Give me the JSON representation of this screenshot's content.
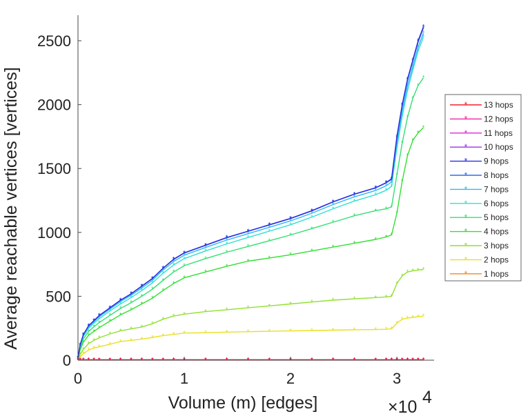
{
  "chart_data": {
    "type": "line",
    "title": "",
    "xlabel": "Volume (m) [edges]",
    "ylabel": "Average reachable vertices [vertices]",
    "x_multiplier": "×10",
    "x_multiplier_exp": "4",
    "xlim": [
      0,
      3.35
    ],
    "ylim": [
      0,
      2700
    ],
    "x_ticks": [
      0,
      1,
      2,
      3
    ],
    "x_tick_labels": [
      "0",
      "1",
      "2",
      "3"
    ],
    "y_ticks": [
      0,
      500,
      1000,
      1500,
      2000,
      2500
    ],
    "y_tick_labels": [
      "0",
      "500",
      "1000",
      "1500",
      "2000",
      "2500"
    ],
    "grid": false,
    "legend_position": "right",
    "marker": "*",
    "x": [
      0,
      0.02,
      0.05,
      0.1,
      0.15,
      0.2,
      0.3,
      0.4,
      0.5,
      0.6,
      0.7,
      0.8,
      0.9,
      1.0,
      1.2,
      1.4,
      1.6,
      1.8,
      2.0,
      2.2,
      2.4,
      2.6,
      2.8,
      2.9,
      2.95,
      3.0,
      3.05,
      3.1,
      3.15,
      3.2,
      3.25
    ],
    "series": [
      {
        "name": "13 hops",
        "color": "#f0202c",
        "values": [
          2,
          2,
          2,
          2,
          2,
          2,
          2,
          2,
          2,
          2,
          2,
          2,
          2,
          2,
          2,
          2,
          2,
          2,
          2,
          2,
          2,
          2,
          2,
          2,
          2,
          2,
          2,
          2,
          2,
          2,
          2
        ]
      },
      {
        "name": "12 hops",
        "color": "#f0209a",
        "values": [
          2,
          2,
          2,
          2,
          2,
          2,
          2,
          2,
          2,
          2,
          2,
          2,
          2,
          2,
          2,
          2,
          2,
          2,
          2,
          2,
          2,
          2,
          2,
          2,
          2,
          2,
          2,
          2,
          2,
          2,
          2
        ]
      },
      {
        "name": "11 hops",
        "color": "#e020e0",
        "values": [
          2,
          2,
          2,
          2,
          2,
          2,
          2,
          2,
          2,
          2,
          2,
          2,
          2,
          2,
          2,
          2,
          2,
          2,
          2,
          2,
          2,
          2,
          2,
          2,
          2,
          2,
          2,
          2,
          2,
          2,
          2
        ]
      },
      {
        "name": "10 hops",
        "color": "#9a30e8",
        "values": [
          2,
          2,
          2,
          2,
          2,
          2,
          2,
          2,
          2,
          2,
          2,
          2,
          2,
          2,
          2,
          2,
          2,
          2,
          2,
          2,
          2,
          2,
          2,
          2,
          2,
          2,
          2,
          2,
          2,
          2,
          2
        ]
      },
      {
        "name": "9 hops",
        "color": "#2c2ce0",
        "values": [
          20,
          120,
          200,
          270,
          310,
          350,
          410,
          470,
          520,
          580,
          640,
          720,
          790,
          840,
          900,
          960,
          1010,
          1060,
          1110,
          1170,
          1240,
          1300,
          1350,
          1390,
          1420,
          1750,
          2000,
          2200,
          2350,
          2500,
          2610
        ]
      },
      {
        "name": "8 hops",
        "color": "#2f6af0",
        "values": [
          20,
          118,
          198,
          268,
          308,
          348,
          408,
          468,
          518,
          578,
          638,
          718,
          788,
          838,
          898,
          958,
          1008,
          1058,
          1108,
          1168,
          1238,
          1298,
          1348,
          1388,
          1415,
          1740,
          1990,
          2190,
          2340,
          2490,
          2600
        ]
      },
      {
        "name": "7 hops",
        "color": "#30b8f0",
        "values": [
          20,
          115,
          195,
          262,
          302,
          340,
          400,
          458,
          508,
          565,
          625,
          705,
          772,
          822,
          882,
          940,
          990,
          1040,
          1090,
          1150,
          1218,
          1278,
          1328,
          1365,
          1395,
          1700,
          1950,
          2150,
          2300,
          2450,
          2560
        ]
      },
      {
        "name": "6 hops",
        "color": "#2ee0d2",
        "values": [
          18,
          110,
          185,
          250,
          290,
          325,
          385,
          440,
          490,
          545,
          605,
          680,
          745,
          795,
          855,
          910,
          960,
          1010,
          1060,
          1120,
          1185,
          1245,
          1295,
          1330,
          1360,
          1660,
          1910,
          2110,
          2270,
          2420,
          2530
        ]
      },
      {
        "name": "5 hops",
        "color": "#30e070",
        "values": [
          15,
          95,
          165,
          225,
          262,
          295,
          350,
          405,
          450,
          500,
          555,
          625,
          690,
          740,
          795,
          845,
          890,
          935,
          980,
          1030,
          1080,
          1130,
          1170,
          1185,
          1200,
          1450,
          1700,
          1900,
          2050,
          2150,
          2210
        ]
      },
      {
        "name": "4 hops",
        "color": "#30e030",
        "values": [
          12,
          80,
          140,
          195,
          225,
          255,
          305,
          355,
          395,
          440,
          485,
          545,
          600,
          645,
          690,
          735,
          775,
          800,
          825,
          855,
          885,
          915,
          945,
          965,
          980,
          1150,
          1400,
          1600,
          1720,
          1780,
          1820
        ]
      },
      {
        "name": "3 hops",
        "color": "#90e030",
        "values": [
          8,
          45,
          85,
          130,
          155,
          175,
          205,
          230,
          245,
          260,
          285,
          320,
          345,
          360,
          380,
          395,
          410,
          425,
          440,
          455,
          470,
          480,
          490,
          495,
          500,
          600,
          660,
          690,
          700,
          705,
          710
        ]
      },
      {
        "name": "2 hops",
        "color": "#e8e020",
        "values": [
          5,
          25,
          50,
          80,
          95,
          105,
          125,
          145,
          155,
          165,
          178,
          192,
          202,
          212,
          215,
          220,
          223,
          226,
          229,
          232,
          235,
          238,
          240,
          242,
          245,
          290,
          320,
          330,
          335,
          340,
          345
        ]
      },
      {
        "name": "1 hops",
        "color": "#f08a20",
        "values": [
          2,
          2,
          2,
          2,
          2,
          2,
          2,
          2,
          2,
          2,
          2,
          2,
          2,
          2,
          2,
          2,
          2,
          2,
          2,
          2,
          2,
          2,
          2,
          2,
          2,
          2,
          2,
          2,
          2,
          2,
          2
        ]
      }
    ]
  }
}
